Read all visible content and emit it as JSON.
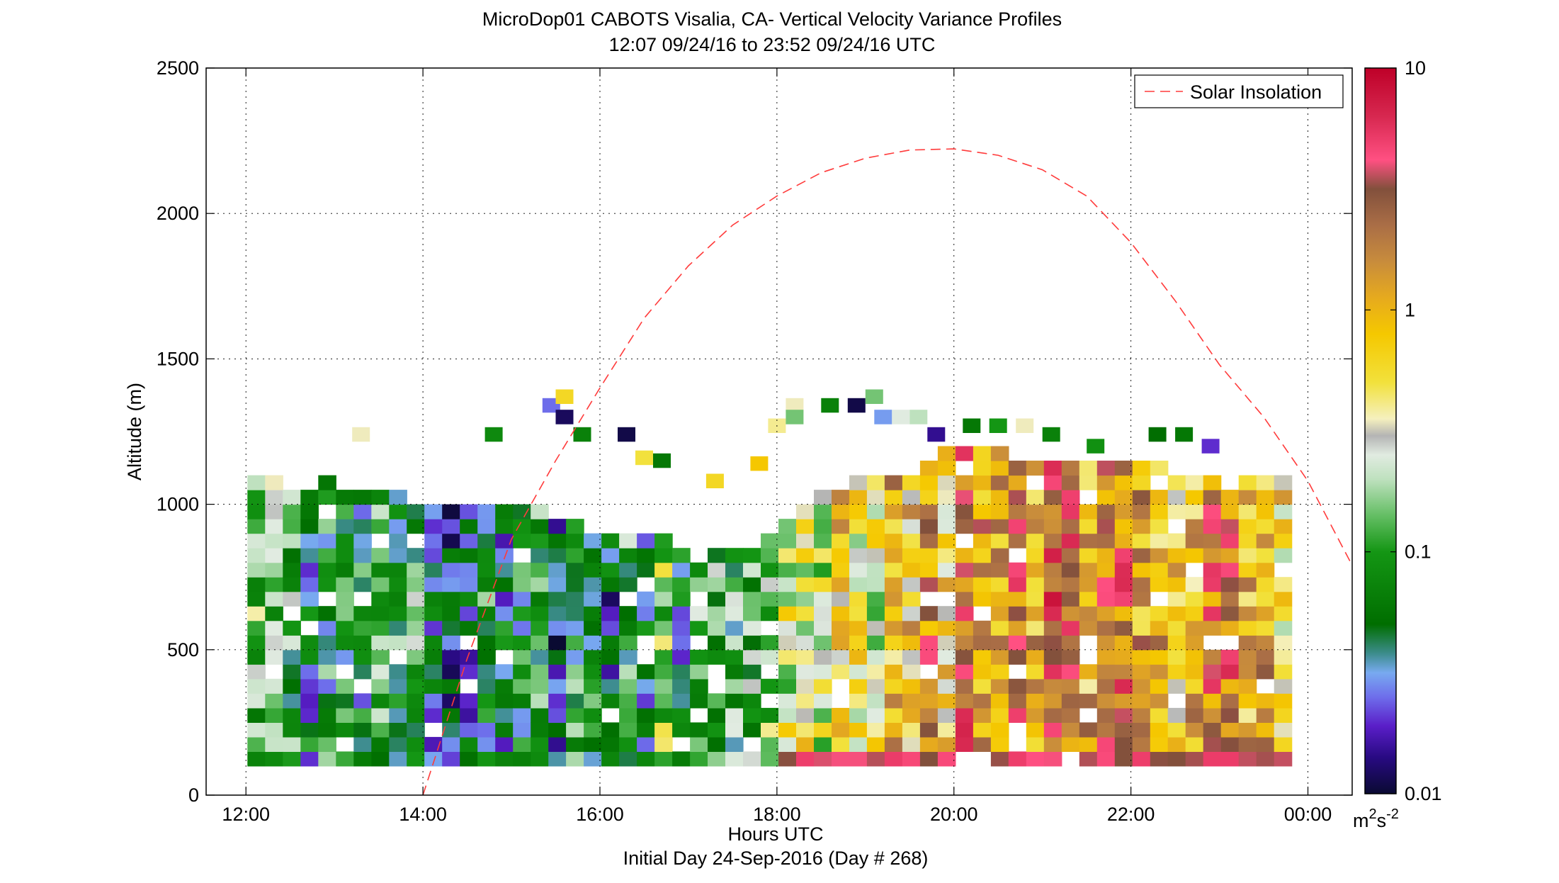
{
  "title_line1": "MicroDop01 CABOTS Visalia, CA- Vertical Velocity Variance Profiles",
  "title_line2": "12:07 09/24/16 to 23:52 09/24/16  UTC",
  "xlabel": "Hours UTC",
  "xlabel2": "Initial Day 24-Sep-2016 (Day # 268)",
  "ylabel": "Altitude (m)",
  "legend_label": "Solar Insolation",
  "colorbar": {
    "unit_base": "m",
    "unit_exp1": "2",
    "unit_mid": "s",
    "unit_exp2": "-2",
    "ticks": [
      "0.01",
      "0.1",
      "1",
      "10"
    ],
    "tick_values": [
      0.01,
      0.1,
      1,
      10
    ]
  },
  "colors": {
    "solar_line": "#ff3b3b",
    "grid": "#000000"
  },
  "chart_data": {
    "type": "heatmap",
    "x_unit": "hours UTC",
    "x_range": [
      11.55,
      24.5
    ],
    "x_ticks": [
      12,
      14,
      16,
      18,
      20,
      22,
      24
    ],
    "x_tick_labels": [
      "12:00",
      "14:00",
      "16:00",
      "18:00",
      "20:00",
      "22:00",
      "00:00"
    ],
    "y_range": [
      0,
      2500
    ],
    "y_ticks": [
      0,
      500,
      1000,
      1500,
      2000,
      2500
    ],
    "y_tick_labels": [
      "0",
      "500",
      "1000",
      "1500",
      "2000",
      "2500"
    ],
    "grid": true,
    "color_scale": "log",
    "color_range": [
      0.01,
      10
    ],
    "x_start": 12.117,
    "x_end": 23.867,
    "dx_hours": 0.2,
    "y_start": 125,
    "dy_m": 50,
    "column_top_bins": [
      20,
      20,
      19,
      19,
      20,
      19,
      19,
      19,
      19,
      18,
      18,
      18,
      18,
      18,
      18,
      18,
      18,
      17,
      17,
      16,
      16,
      16,
      16,
      16,
      15,
      15,
      15,
      15,
      15,
      16,
      17,
      18,
      19,
      19,
      20,
      20,
      20,
      20,
      21,
      22,
      22,
      22,
      22,
      21,
      21,
      21,
      21,
      21,
      21,
      21,
      21,
      21,
      20,
      20,
      20,
      20,
      20,
      20,
      20
    ],
    "trend": [
      {
        "x": 12.1,
        "log10_var": -1.0
      },
      {
        "x": 13.5,
        "log10_var": -1.15
      },
      {
        "x": 15.0,
        "log10_var": -1.4
      },
      {
        "x": 16.0,
        "log10_var": -1.25
      },
      {
        "x": 17.0,
        "log10_var": -1.0
      },
      {
        "x": 18.0,
        "log10_var": -0.55
      },
      {
        "x": 19.0,
        "log10_var": -0.2
      },
      {
        "x": 20.0,
        "log10_var": 0.05
      },
      {
        "x": 21.0,
        "log10_var": 0.15
      },
      {
        "x": 22.0,
        "log10_var": 0.2
      },
      {
        "x": 23.0,
        "log10_var": 0.1
      },
      {
        "x": 23.9,
        "log10_var": -0.05
      }
    ],
    "near_surface": {
      "y": 150,
      "log10_var_day": 0.6,
      "day_start": 18.1,
      "day_end": 23.9
    },
    "scattered_upper_cells": [
      {
        "x": 13.3,
        "y": 1240,
        "v": 0.35
      },
      {
        "x": 14.8,
        "y": 1240,
        "v": 0.08
      },
      {
        "x": 15.45,
        "y": 1340,
        "v": 0.025
      },
      {
        "x": 15.6,
        "y": 1370,
        "v": 0.6
      },
      {
        "x": 15.6,
        "y": 1300,
        "v": 0.012
      },
      {
        "x": 15.8,
        "y": 1240,
        "v": 0.07
      },
      {
        "x": 16.3,
        "y": 1240,
        "v": 0.011
      },
      {
        "x": 16.5,
        "y": 1160,
        "v": 0.5
      },
      {
        "x": 16.7,
        "y": 1150,
        "v": 0.06
      },
      {
        "x": 17.3,
        "y": 1080,
        "v": 0.6
      },
      {
        "x": 17.8,
        "y": 1140,
        "v": 0.8
      },
      {
        "x": 18.0,
        "y": 1270,
        "v": 0.4
      },
      {
        "x": 18.2,
        "y": 1340,
        "v": 0.35
      },
      {
        "x": 18.2,
        "y": 1300,
        "v": 0.15
      },
      {
        "x": 18.6,
        "y": 1340,
        "v": 0.07
      },
      {
        "x": 18.9,
        "y": 1340,
        "v": 0.011
      },
      {
        "x": 19.1,
        "y": 1370,
        "v": 0.15
      },
      {
        "x": 19.2,
        "y": 1300,
        "v": 0.03
      },
      {
        "x": 19.4,
        "y": 1300,
        "v": 0.25
      },
      {
        "x": 19.6,
        "y": 1300,
        "v": 0.2
      },
      {
        "x": 19.8,
        "y": 1240,
        "v": 0.015
      },
      {
        "x": 20.2,
        "y": 1270,
        "v": 0.06
      },
      {
        "x": 20.5,
        "y": 1270,
        "v": 0.1
      },
      {
        "x": 20.8,
        "y": 1270,
        "v": 0.35
      },
      {
        "x": 21.1,
        "y": 1240,
        "v": 0.07
      },
      {
        "x": 21.6,
        "y": 1200,
        "v": 0.09
      },
      {
        "x": 22.3,
        "y": 1240,
        "v": 0.05
      },
      {
        "x": 22.6,
        "y": 1240,
        "v": 0.06
      },
      {
        "x": 22.9,
        "y": 1200,
        "v": 0.02
      }
    ],
    "solar_insolation_curve": [
      {
        "x": 14.0,
        "y": 0
      },
      {
        "x": 14.5,
        "y": 470
      },
      {
        "x": 15.0,
        "y": 880
      },
      {
        "x": 15.5,
        "y": 1150
      },
      {
        "x": 16.0,
        "y": 1400
      },
      {
        "x": 16.5,
        "y": 1640
      },
      {
        "x": 17.0,
        "y": 1820
      },
      {
        "x": 17.5,
        "y": 1960
      },
      {
        "x": 18.0,
        "y": 2060
      },
      {
        "x": 18.5,
        "y": 2140
      },
      {
        "x": 19.0,
        "y": 2190
      },
      {
        "x": 19.5,
        "y": 2218
      },
      {
        "x": 20.0,
        "y": 2222
      },
      {
        "x": 20.5,
        "y": 2200
      },
      {
        "x": 21.0,
        "y": 2150
      },
      {
        "x": 21.5,
        "y": 2060
      },
      {
        "x": 22.0,
        "y": 1900
      },
      {
        "x": 22.5,
        "y": 1700
      },
      {
        "x": 23.0,
        "y": 1480
      },
      {
        "x": 23.5,
        "y": 1300
      },
      {
        "x": 24.0,
        "y": 1080
      },
      {
        "x": 24.5,
        "y": 790
      }
    ]
  }
}
